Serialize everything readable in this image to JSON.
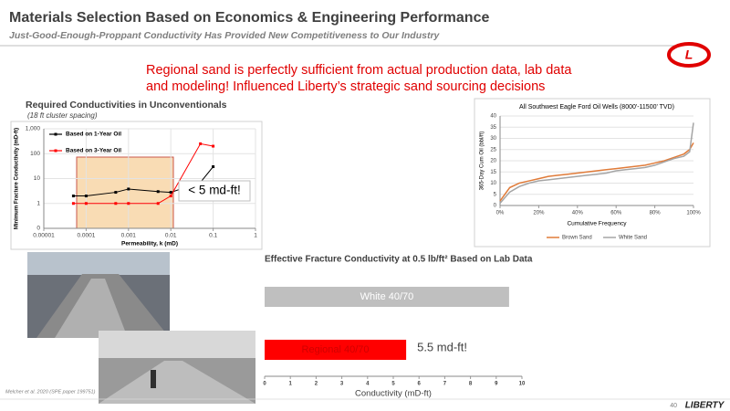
{
  "header": {
    "title": "Materials Selection Based on Economics & Engineering Performance",
    "subtitle": "Just-Good-Enough-Proppant Conductivity Has Provided New Competitiveness to Our Industry"
  },
  "callout": "Regional sand is perfectly sufficient from actual production data, lab data and modeling! Influenced Liberty’s strategic sand sourcing decisions",
  "left_section": {
    "title": "Required Conductivities in Unconventionals",
    "subtitle": "(18 ft cluster spacing)",
    "annotation": "< 5 md-ft!"
  },
  "citation": "Melcher et al. 2020 (SPE paper 199751)",
  "footer": {
    "page_number": 40,
    "logo": "LIBERTY"
  },
  "chart_data": [
    {
      "type": "line",
      "x_label": "Permeability, k (mD)",
      "y_label": "Minimum Fracture Conductivity (mD-ft)",
      "x": [
        5e-05,
        0.0001,
        0.0005,
        0.001,
        0.005,
        0.01,
        0.05,
        0.1
      ],
      "series": [
        {
          "name": "Based on 1-Year Oil",
          "color": "#000000",
          "values": [
            2,
            2,
            2.8,
            3.8,
            3,
            2.8,
            7,
            30
          ]
        },
        {
          "name": "Based on 3-Year Oil",
          "color": "#ff0000",
          "values": [
            1,
            1,
            1,
            1,
            1,
            2,
            250,
            200
          ]
        }
      ],
      "xscale": "log",
      "yscale": "log",
      "xlim": [
        1e-05,
        1
      ],
      "xticks": [
        1e-05,
        0.0001,
        0.001,
        0.01,
        0.1,
        1
      ],
      "ylim": [
        0.1,
        1000
      ],
      "yticks": [
        {
          "value": 0.1,
          "label": "0"
        },
        1,
        10,
        100,
        {
          "value": 1000,
          "label": "1,000"
        }
      ],
      "grid": true,
      "markers": true,
      "legend": "upper left"
    },
    {
      "type": "line",
      "title": "All Southwest Eagle Ford Oil Wells (8000'-11500' TVD)",
      "x_label": "Cumulative Frequency",
      "y_label": "365-Day Cum Oil (bbl/ft)",
      "x": [
        0,
        5,
        10,
        15,
        20,
        25,
        30,
        35,
        40,
        45,
        50,
        55,
        60,
        65,
        70,
        75,
        80,
        85,
        90,
        95,
        98,
        100
      ],
      "series": [
        {
          "name": "Brown Sand",
          "color": "#e07b39",
          "values": [
            2,
            8,
            10,
            11,
            12,
            13,
            13.5,
            14,
            14.5,
            15,
            15.5,
            16,
            16.5,
            17,
            17.5,
            18,
            19,
            20,
            21.5,
            23,
            25,
            28
          ]
        },
        {
          "name": "White Sand",
          "color": "#a5a5a5",
          "values": [
            1,
            6,
            8.5,
            10,
            11,
            11.5,
            12,
            12.5,
            13,
            13.5,
            14,
            14.5,
            15.5,
            16,
            16.5,
            17,
            18,
            19.5,
            21,
            22,
            24,
            37
          ]
        }
      ],
      "xlim": [
        0,
        100
      ],
      "xticks": [
        {
          "value": 0,
          "label": "0%"
        },
        {
          "value": 20,
          "label": "20%"
        },
        {
          "value": 40,
          "label": "40%"
        },
        {
          "value": 60,
          "label": "60%"
        },
        {
          "value": 80,
          "label": "80%"
        },
        {
          "value": 100,
          "label": "100%"
        }
      ],
      "ylim": [
        0,
        40
      ],
      "yticks": [
        0,
        5,
        10,
        15,
        20,
        25,
        30,
        35,
        40
      ],
      "grid": true,
      "markers": false,
      "legend": "bottom"
    },
    {
      "type": "bar",
      "orientation": "horizontal",
      "title": "Effective Fracture Conductivity at 0.5 lb/ft² Based on Lab Data",
      "x_label": "Conductivity (mD-ft)",
      "categories": [
        "White 40/70",
        "Regional 40/70"
      ],
      "values": [
        9.5,
        5.5
      ],
      "colors": [
        "#bfbfbf",
        "#ff0000"
      ],
      "annotation": "5.5 md-ft!",
      "xlim": [
        0,
        10
      ],
      "xticks": [
        0,
        1,
        2,
        3,
        4,
        5,
        6,
        7,
        8,
        9,
        10
      ],
      "grid": false
    }
  ]
}
